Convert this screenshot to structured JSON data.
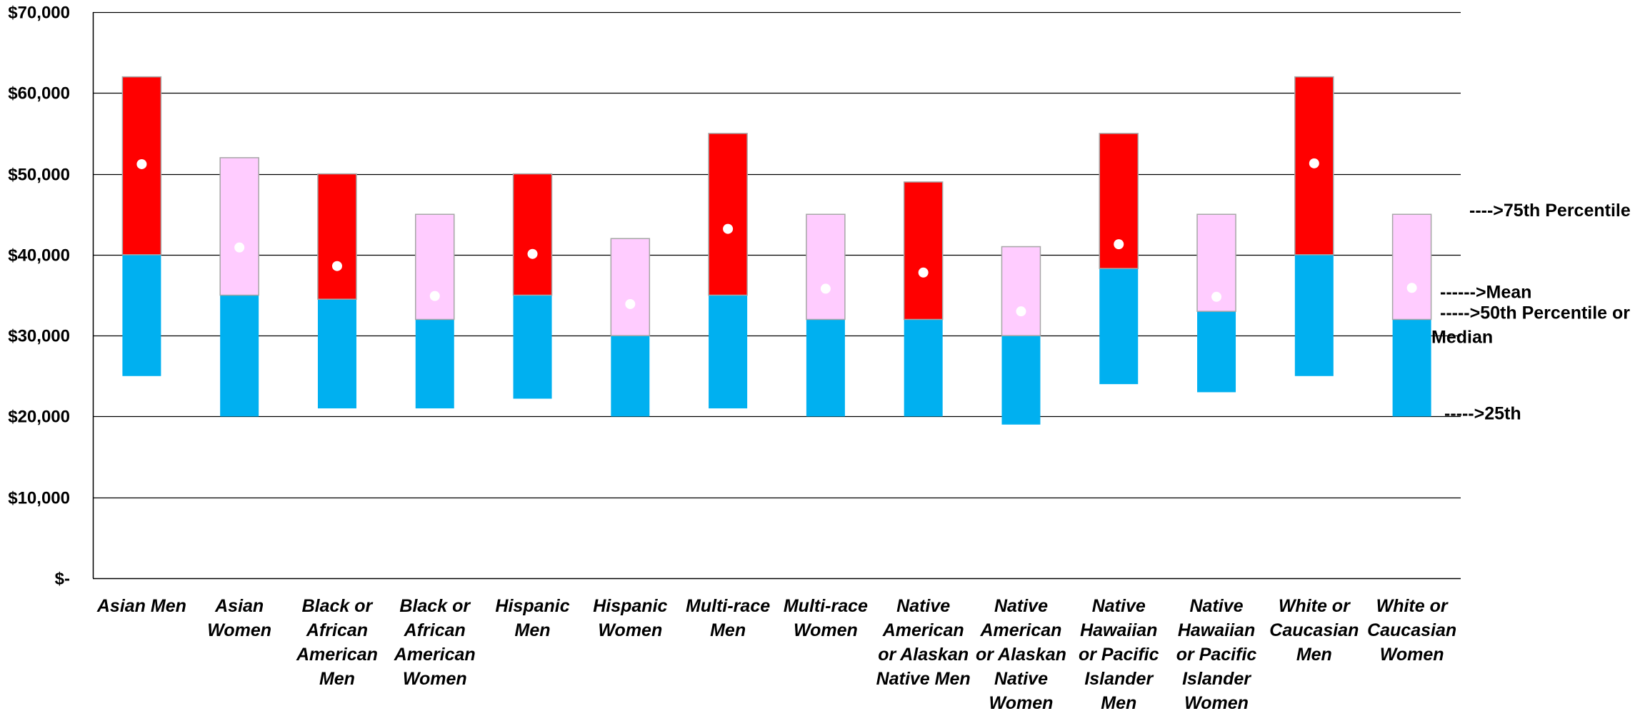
{
  "chart_data": {
    "type": "bar",
    "subtype": "stacked-floating-range",
    "categories": [
      [
        "Asian Men"
      ],
      [
        "Asian",
        "Women"
      ],
      [
        "Black or",
        "African",
        "American",
        "Men"
      ],
      [
        "Black or",
        "African",
        "American",
        "Women"
      ],
      [
        "Hispanic",
        "Men"
      ],
      [
        "Hispanic",
        "Women"
      ],
      [
        "Multi-race",
        "Men"
      ],
      [
        "Multi-race",
        "Women"
      ],
      [
        "Native",
        "American",
        "or Alaskan",
        "Native Men"
      ],
      [
        "Native",
        "American",
        "or Alaskan",
        "Native",
        "Women"
      ],
      [
        "Native",
        "Hawaiian",
        "or Pacific",
        "Islander",
        "Men"
      ],
      [
        "Native",
        "Hawaiian",
        "or Pacific",
        "Islander",
        "Women"
      ],
      [
        "White or",
        "Caucasian",
        "Men"
      ],
      [
        "White or",
        "Caucasian",
        "Women"
      ]
    ],
    "groups": [
      "men",
      "women",
      "men",
      "women",
      "men",
      "women",
      "men",
      "women",
      "men",
      "women",
      "men",
      "women",
      "men",
      "women"
    ],
    "series": [
      {
        "values": [
          25000,
          20000,
          21000,
          21000,
          22200,
          20000,
          21000,
          20000,
          20000,
          19000,
          24000,
          23000,
          25000,
          20000
        ]
      },
      {
        "values": [
          40000,
          35000,
          34500,
          32000,
          35000,
          30000,
          35000,
          32000,
          32000,
          30000,
          38300,
          33000,
          40000,
          32000
        ]
      },
      {
        "values": [
          62000,
          52000,
          50000,
          45000,
          50000,
          42000,
          55000,
          45000,
          49000,
          41000,
          55000,
          45000,
          62000,
          45000
        ]
      },
      {
        "values": [
          51200,
          40900,
          38600,
          34900,
          40100,
          33900,
          43200,
          35800,
          37800,
          33000,
          41300,
          34800,
          51300,
          35900
        ]
      }
    ],
    "ylim": [
      0,
      70000
    ],
    "yticks": [
      {
        "value": 0,
        "label": "$-"
      },
      {
        "value": 10000,
        "label": "$10,000"
      },
      {
        "value": 20000,
        "label": "$20,000"
      },
      {
        "value": 30000,
        "label": "$30,000"
      },
      {
        "value": 40000,
        "label": "$40,000"
      },
      {
        "value": 50000,
        "label": "$50,000"
      },
      {
        "value": 60000,
        "label": "$60,000"
      },
      {
        "value": 70000,
        "label": "$70,000"
      }
    ],
    "grid": true,
    "annotations": [
      {
        "lines": [
          "---->75th Percentile"
        ],
        "anchor_value": 45000
      },
      {
        "lines": [
          "------>Mean"
        ],
        "anchor_value": 35900
      },
      {
        "lines": [
          "----->50th Percentile or",
          "Median"
        ],
        "anchor_value": 32000
      },
      {
        "lines": [
          "----->25th"
        ],
        "anchor_value": 20000
      }
    ],
    "colors": {
      "men_upper": "#ff0000",
      "women_upper": "#ffccff",
      "lower": "#00b0f0",
      "mean_marker": "#ffffff",
      "upper_border": "#a6a6a6",
      "gridline": "#000000"
    }
  }
}
